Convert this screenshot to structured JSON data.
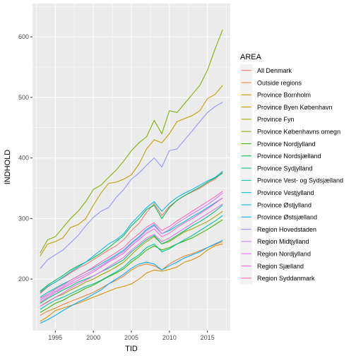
{
  "chart_data": {
    "type": "line",
    "xlabel": "TID",
    "ylabel": "INDHOLD",
    "xlim": [
      1992,
      2018
    ],
    "ylim": [
      115,
      655
    ],
    "x_ticks": [
      1995,
      2000,
      2005,
      2010,
      2015
    ],
    "y_ticks": [
      200,
      300,
      400,
      500,
      600
    ],
    "grid": true,
    "legend_title": "AREA",
    "legend_position": "right",
    "x": [
      1993,
      1994,
      1995,
      1996,
      1997,
      1998,
      1999,
      2000,
      2001,
      2002,
      2003,
      2004,
      2005,
      2006,
      2007,
      2008,
      2009,
      2010,
      2011,
      2012,
      2013,
      2014,
      2015,
      2016,
      2017
    ],
    "series": [
      {
        "name": "All Denmark",
        "color": "#F8766D",
        "values": [
          176,
          187,
          195,
          202,
          210,
          218,
          224,
          232,
          240,
          248,
          255,
          265,
          280,
          292,
          310,
          325,
          305,
          320,
          330,
          338,
          344,
          350,
          358,
          365,
          377
        ]
      },
      {
        "name": "Outside regions",
        "color": "#EA8331",
        "values": [
          140,
          147,
          152,
          158,
          163,
          168,
          173,
          178,
          185,
          192,
          198,
          205,
          215,
          222,
          225,
          222,
          215,
          225,
          232,
          238,
          242,
          247,
          252,
          257,
          262
        ]
      },
      {
        "name": "Province Bornholm",
        "color": "#D89000",
        "values": [
          130,
          138,
          148,
          152,
          156,
          160,
          165,
          170,
          175,
          180,
          185,
          188,
          192,
          200,
          210,
          215,
          213,
          216,
          220,
          228,
          232,
          238,
          248,
          255,
          258
        ]
      },
      {
        "name": "Province Byen København",
        "color": "#C09B00",
        "values": [
          238,
          258,
          262,
          268,
          285,
          290,
          300,
          322,
          342,
          358,
          360,
          365,
          372,
          390,
          415,
          430,
          425,
          440,
          460,
          465,
          470,
          478,
          498,
          505,
          520
        ]
      },
      {
        "name": "Province Fyn",
        "color": "#A3A500",
        "values": [
          155,
          163,
          170,
          175,
          182,
          188,
          195,
          200,
          207,
          213,
          220,
          228,
          240,
          252,
          262,
          270,
          258,
          262,
          270,
          278,
          283,
          289,
          295,
          303,
          312
        ]
      },
      {
        "name": "Province Københavns omegn",
        "color": "#7CAE00",
        "values": [
          243,
          265,
          270,
          285,
          300,
          312,
          328,
          348,
          355,
          368,
          380,
          395,
          412,
          425,
          435,
          462,
          440,
          478,
          475,
          490,
          505,
          520,
          545,
          580,
          612
        ]
      },
      {
        "name": "Province Nordjylland",
        "color": "#39B600",
        "values": [
          145,
          152,
          160,
          165,
          172,
          178,
          185,
          190,
          197,
          204,
          210,
          217,
          228,
          237,
          248,
          255,
          248,
          252,
          258,
          263,
          268,
          275,
          282,
          290,
          298
        ]
      },
      {
        "name": "Province Nordsjælland",
        "color": "#00BB4E",
        "values": [
          180,
          190,
          198,
          206,
          215,
          222,
          228,
          235,
          243,
          252,
          262,
          272,
          288,
          300,
          315,
          322,
          300,
          318,
          330,
          338,
          345,
          352,
          360,
          367,
          375
        ]
      },
      {
        "name": "Province Sydjylland",
        "color": "#00BF7D",
        "values": [
          160,
          168,
          175,
          182,
          188,
          195,
          200,
          205,
          212,
          218,
          225,
          232,
          245,
          255,
          265,
          272,
          258,
          264,
          272,
          280,
          288,
          295,
          303,
          312,
          322
        ]
      },
      {
        "name": "Province Vest- og Sydsjælland",
        "color": "#00C1A3",
        "values": [
          150,
          158,
          165,
          170,
          176,
          182,
          188,
          192,
          198,
          205,
          212,
          220,
          232,
          240,
          252,
          258,
          245,
          250,
          258,
          265,
          272,
          280,
          288,
          296,
          305
        ]
      },
      {
        "name": "Province Vestjylland",
        "color": "#00BFC4",
        "values": [
          170,
          178,
          185,
          192,
          198,
          205,
          212,
          218,
          225,
          232,
          240,
          248,
          260,
          270,
          282,
          290,
          275,
          280,
          288,
          295,
          303,
          310,
          318,
          326,
          334
        ]
      },
      {
        "name": "Province Østjylland",
        "color": "#00B8E5",
        "values": [
          178,
          188,
          195,
          203,
          212,
          220,
          228,
          238,
          248,
          258,
          265,
          275,
          292,
          305,
          318,
          328,
          312,
          325,
          335,
          342,
          348,
          355,
          362,
          368,
          378
        ]
      },
      {
        "name": "Province Østsjælland",
        "color": "#00A9FF",
        "values": [
          127,
          133,
          140,
          148,
          155,
          162,
          168,
          175,
          182,
          192,
          200,
          208,
          218,
          225,
          228,
          225,
          215,
          222,
          228,
          235,
          240,
          245,
          252,
          258,
          264
        ]
      },
      {
        "name": "Region Hovedstaden",
        "color": "#8F91FF",
        "values": [
          217,
          232,
          240,
          248,
          260,
          272,
          288,
          302,
          312,
          318,
          335,
          348,
          365,
          375,
          388,
          400,
          385,
          412,
          415,
          430,
          445,
          460,
          475,
          485,
          492
        ]
      },
      {
        "name": "Region Midtjylland",
        "color": "#C77CFF",
        "values": [
          165,
          173,
          180,
          187,
          195,
          202,
          208,
          215,
          222,
          230,
          238,
          246,
          258,
          268,
          280,
          288,
          275,
          282,
          292,
          300,
          308,
          315,
          323,
          332,
          342
        ]
      },
      {
        "name": "Region Nordjylland",
        "color": "#E76BF3",
        "values": [
          155,
          162,
          170,
          177,
          185,
          192,
          198,
          205,
          212,
          220,
          228,
          236,
          248,
          258,
          268,
          274,
          262,
          268,
          276,
          284,
          292,
          300,
          308,
          316,
          324
        ]
      },
      {
        "name": "Region Sjælland",
        "color": "#FA62DB",
        "values": [
          162,
          170,
          178,
          185,
          192,
          198,
          205,
          212,
          220,
          228,
          235,
          243,
          255,
          265,
          276,
          283,
          270,
          276,
          285,
          293,
          300,
          308,
          316,
          325,
          334
        ]
      },
      {
        "name": "Region Syddanmark",
        "color": "#FF62BC",
        "values": [
          168,
          175,
          183,
          190,
          198,
          205,
          212,
          220,
          228,
          236,
          244,
          252,
          265,
          275,
          286,
          293,
          280,
          287,
          296,
          304,
          312,
          320,
          328,
          336,
          345
        ]
      }
    ]
  }
}
